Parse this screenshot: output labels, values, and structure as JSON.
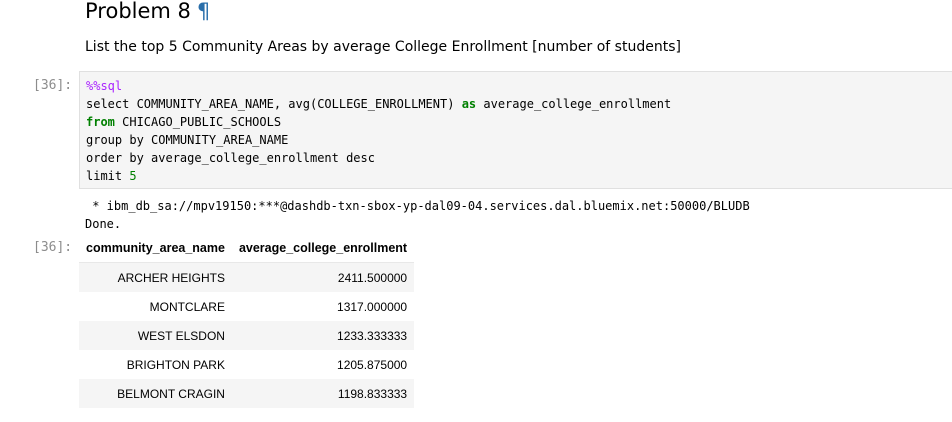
{
  "markdown": {
    "heading": "Problem 8",
    "anchor_symbol": "¶",
    "description": "List the top 5 Community Areas by average College Enrollment [number of students]"
  },
  "input_prompt": "[36]:",
  "code": {
    "line1_magic": "%%sql",
    "line2": "select COMMUNITY_AREA_NAME, avg(COLLEGE_ENROLLMENT) ",
    "line2_kw": "as",
    "line2_rest": " average_college_enrollment",
    "line3_kw": "from",
    "line3_rest": " CHICAGO_PUBLIC_SCHOOLS",
    "line4": "group by COMMUNITY_AREA_NAME",
    "line5": "order by average_college_enrollment desc",
    "line6": "limit ",
    "line6_num": "5"
  },
  "output": {
    "connection": " * ibm_db_sa://mpv19150:***@dashdb-txn-sbox-yp-dal09-04.services.dal.bluemix.net:50000/BLUDB",
    "status": "Done."
  },
  "output_prompt": "[36]:",
  "table": {
    "headers": [
      "community_area_name",
      "average_college_enrollment"
    ],
    "rows": [
      [
        "ARCHER HEIGHTS",
        "2411.500000"
      ],
      [
        "MONTCLARE",
        "1317.000000"
      ],
      [
        "WEST ELSDON",
        "1233.333333"
      ],
      [
        "BRIGHTON PARK",
        "1205.875000"
      ],
      [
        "BELMONT CRAGIN",
        "1198.833333"
      ]
    ]
  }
}
